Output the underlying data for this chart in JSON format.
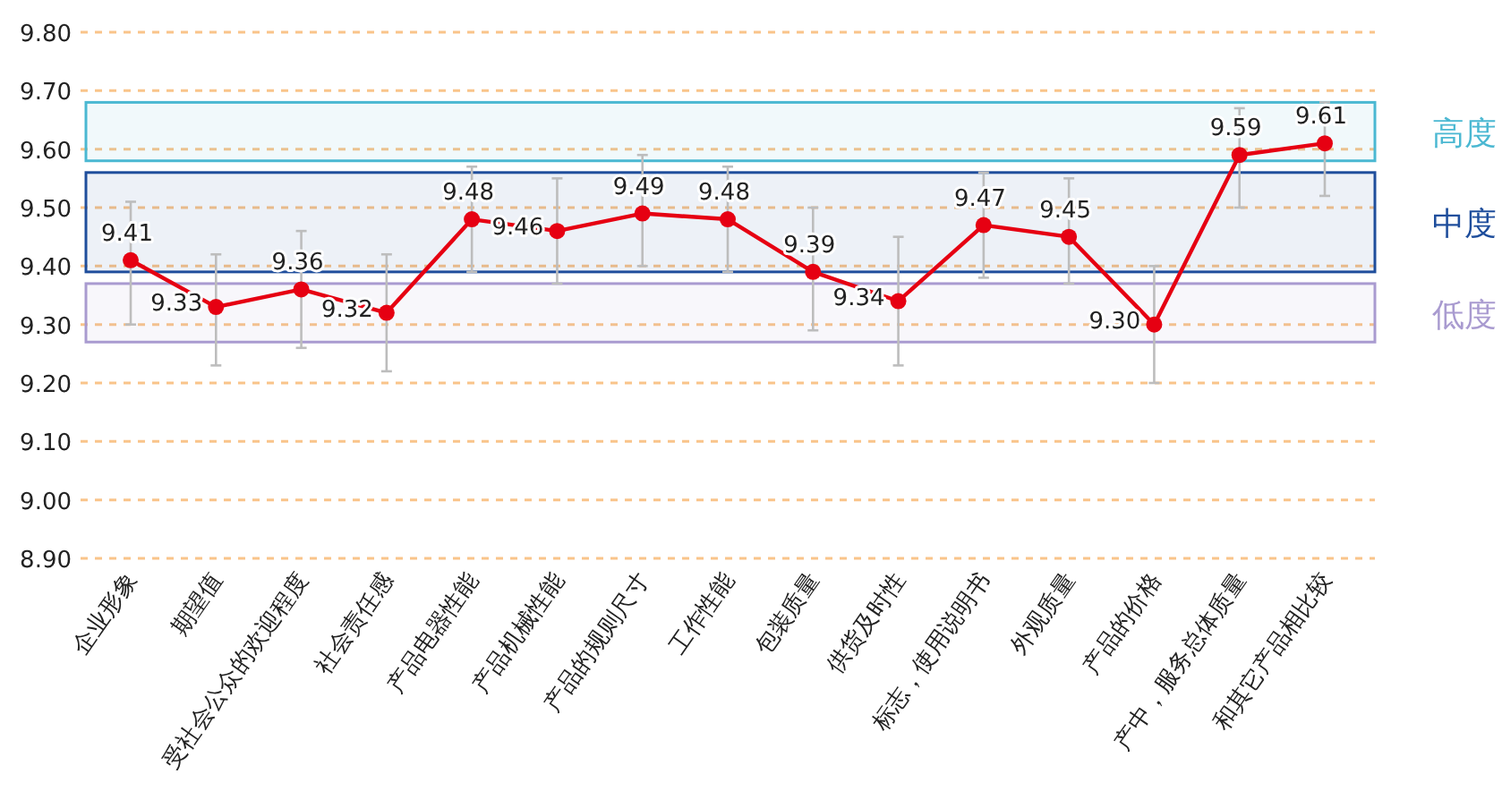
{
  "chart_data": {
    "type": "line",
    "categories": [
      "企业形象",
      "期望值",
      "受社会公众的欢迎程度",
      "社会责任感",
      "产品电器性能",
      "产品机械性能",
      "产品的规则尺寸",
      "工作性能",
      "包装质量",
      "供货及时性",
      "标志，使用说明书",
      "外观质量",
      "产品的价格",
      "产中，服务总体质量",
      "和其它产品相比较"
    ],
    "values": [
      9.41,
      9.33,
      9.36,
      9.32,
      9.48,
      9.46,
      9.49,
      9.48,
      9.39,
      9.34,
      9.47,
      9.45,
      9.3,
      9.59,
      9.61
    ],
    "errors": [
      [
        9.3,
        9.51
      ],
      [
        9.23,
        9.42
      ],
      [
        9.26,
        9.46
      ],
      [
        9.22,
        9.42
      ],
      [
        9.39,
        9.57
      ],
      [
        9.37,
        9.55
      ],
      [
        9.4,
        9.59
      ],
      [
        9.39,
        9.57
      ],
      [
        9.29,
        9.5
      ],
      [
        9.23,
        9.45
      ],
      [
        9.38,
        9.56
      ],
      [
        9.37,
        9.55
      ],
      [
        9.2,
        9.4
      ],
      [
        9.5,
        9.67
      ],
      [
        9.52,
        9.68
      ]
    ],
    "value_labels": [
      "9.41",
      "9.33",
      "9.36",
      "9.32",
      "9.48",
      "9.46",
      "9.49",
      "9.48",
      "9.39",
      "9.34",
      "9.47",
      "9.45",
      "9.30",
      "9.59",
      "9.61"
    ],
    "color": "#e60012",
    "marker": "circle",
    "grid": "y",
    "ylim": [
      8.9,
      9.8
    ],
    "yticks": [
      {
        "value": 8.9,
        "label": "8.90"
      },
      {
        "value": 9.0,
        "label": "9.00"
      },
      {
        "value": 9.1,
        "label": "9.10"
      },
      {
        "value": 9.2,
        "label": "9.20"
      },
      {
        "value": 9.3,
        "label": "9.30"
      },
      {
        "value": 9.4,
        "label": "9.40"
      },
      {
        "value": 9.5,
        "label": "9.50"
      },
      {
        "value": 9.6,
        "label": "9.60"
      },
      {
        "value": 9.7,
        "label": "9.70"
      },
      {
        "value": 9.8,
        "label": "9.80"
      }
    ],
    "bands": [
      {
        "axis": "y",
        "from": 9.58,
        "to": 9.68,
        "label": "高度",
        "color": "#4bb8d2"
      },
      {
        "axis": "y",
        "from": 9.39,
        "to": 9.56,
        "label": "中度",
        "color": "#1f4e9c"
      },
      {
        "axis": "y",
        "from": 9.27,
        "to": 9.37,
        "label": "低度",
        "color": "#a99bd0"
      }
    ]
  }
}
